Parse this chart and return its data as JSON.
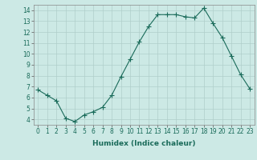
{
  "x": [
    0,
    1,
    2,
    3,
    4,
    5,
    6,
    7,
    8,
    9,
    10,
    11,
    12,
    13,
    14,
    15,
    16,
    17,
    18,
    19,
    20,
    21,
    22,
    23
  ],
  "y": [
    6.7,
    6.2,
    5.7,
    4.1,
    3.8,
    4.4,
    4.7,
    5.1,
    6.2,
    7.9,
    9.5,
    11.1,
    12.5,
    13.6,
    13.6,
    13.6,
    13.4,
    13.3,
    14.2,
    12.8,
    11.5,
    9.8,
    8.1,
    6.8
  ],
  "xlabel": "Humidex (Indice chaleur)",
  "ylim": [
    3.5,
    14.5
  ],
  "xlim": [
    -0.5,
    23.5
  ],
  "yticks": [
    4,
    5,
    6,
    7,
    8,
    9,
    10,
    11,
    12,
    13,
    14
  ],
  "xticks": [
    0,
    1,
    2,
    3,
    4,
    5,
    6,
    7,
    8,
    9,
    10,
    11,
    12,
    13,
    14,
    15,
    16,
    17,
    18,
    19,
    20,
    21,
    22,
    23
  ],
  "line_color": "#1a6b5a",
  "marker": "+",
  "bg_color": "#cce9e5",
  "grid_color": "#b0ceca"
}
